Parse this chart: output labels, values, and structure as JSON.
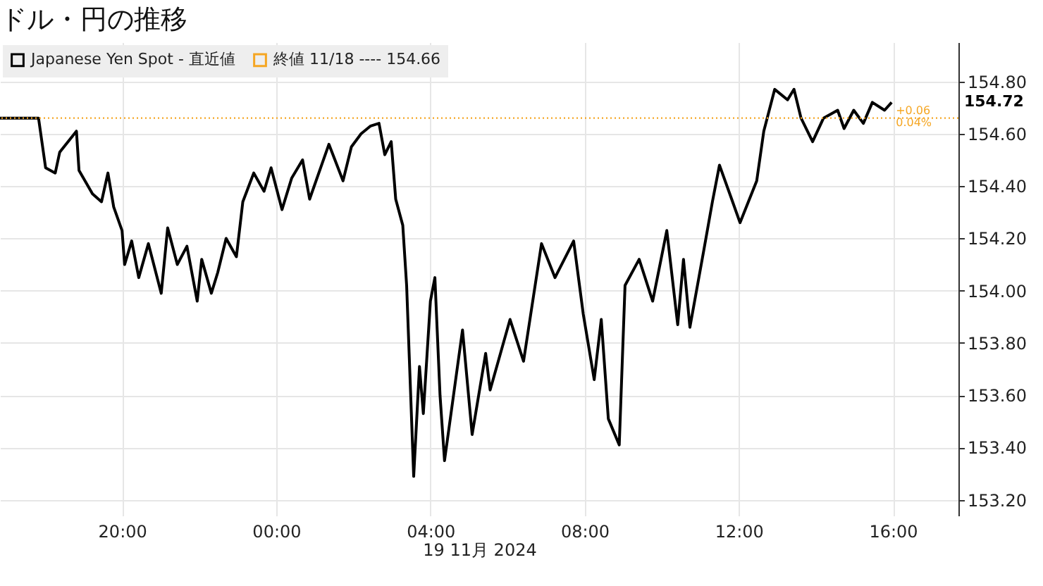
{
  "chart_data": {
    "type": "line",
    "title": "ドル・円の推移",
    "xlabel": "19 11月 2024",
    "x": [
      "2024-11-18T16:50",
      "2024-11-18T17:50",
      "2024-11-18T18:01",
      "2024-11-18T18:16",
      "2024-11-18T18:23",
      "2024-11-18T18:49",
      "2024-11-18T18:53",
      "2024-11-18T19:14",
      "2024-11-18T19:28",
      "2024-11-18T19:38",
      "2024-11-18T19:47",
      "2024-11-18T20:00",
      "2024-11-18T20:04",
      "2024-11-18T20:15",
      "2024-11-18T20:26",
      "2024-11-18T20:41",
      "2024-11-18T21:01",
      "2024-11-18T21:11",
      "2024-11-18T21:26",
      "2024-11-18T21:41",
      "2024-11-18T21:57",
      "2024-11-18T22:04",
      "2024-11-18T22:19",
      "2024-11-18T22:29",
      "2024-11-18T22:42",
      "2024-11-18T22:58",
      "2024-11-18T23:08",
      "2024-11-18T23:25",
      "2024-11-18T23:41",
      "2024-11-18T23:52",
      "2024-11-19T00:09",
      "2024-11-19T00:24",
      "2024-11-19T00:41",
      "2024-11-19T00:52",
      "2024-11-19T01:22",
      "2024-11-19T01:44",
      "2024-11-19T01:57",
      "2024-11-19T02:12",
      "2024-11-19T02:27",
      "2024-11-19T02:40",
      "2024-11-19T02:49",
      "2024-11-19T02:59",
      "2024-11-19T03:06",
      "2024-11-19T03:17",
      "2024-11-19T03:23",
      "2024-11-19T03:34",
      "2024-11-19T03:43",
      "2024-11-19T03:49",
      "2024-11-19T04:00",
      "2024-11-19T04:07",
      "2024-11-19T04:15",
      "2024-11-19T04:22",
      "2024-11-19T04:50",
      "2024-11-19T05:05",
      "2024-11-19T05:26",
      "2024-11-19T05:33",
      "2024-11-19T06:04",
      "2024-11-19T06:25",
      "2024-11-19T06:53",
      "2024-11-19T07:14",
      "2024-11-19T07:43",
      "2024-11-19T07:58",
      "2024-11-19T08:15",
      "2024-11-19T08:26",
      "2024-11-19T08:37",
      "2024-11-19T08:54",
      "2024-11-19T09:03",
      "2024-11-19T09:25",
      "2024-11-19T09:46",
      "2024-11-19T10:08",
      "2024-11-19T10:25",
      "2024-11-19T10:34",
      "2024-11-19T10:44",
      "2024-11-19T11:06",
      "2024-11-19T11:19",
      "2024-11-19T11:30",
      "2024-11-19T11:49",
      "2024-11-19T12:02",
      "2024-11-19T12:28",
      "2024-11-19T12:39",
      "2024-11-19T12:56",
      "2024-11-19T13:16",
      "2024-11-19T13:26",
      "2024-11-19T13:37",
      "2024-11-19T13:55",
      "2024-11-19T14:12",
      "2024-11-19T14:34",
      "2024-11-19T14:44",
      "2024-11-19T14:59",
      "2024-11-19T15:14",
      "2024-11-19T15:28",
      "2024-11-19T15:47",
      "2024-11-19T15:58"
    ],
    "series": [
      {
        "name": "Japanese Yen Spot - 直近値",
        "color": "#000000",
        "values": [
          154.66,
          154.66,
          154.47,
          154.45,
          154.53,
          154.61,
          154.46,
          154.37,
          154.34,
          154.45,
          154.32,
          154.23,
          154.1,
          154.19,
          154.05,
          154.18,
          153.99,
          154.24,
          154.1,
          154.17,
          153.96,
          154.12,
          153.99,
          154.07,
          154.2,
          154.13,
          154.34,
          154.45,
          154.38,
          154.47,
          154.31,
          154.43,
          154.5,
          154.35,
          154.56,
          154.42,
          154.55,
          154.6,
          154.63,
          154.64,
          154.52,
          154.57,
          154.35,
          154.25,
          154.02,
          153.29,
          153.71,
          153.53,
          153.96,
          154.05,
          153.6,
          153.35,
          153.85,
          153.45,
          153.76,
          153.62,
          153.89,
          153.73,
          154.18,
          154.05,
          154.19,
          153.91,
          153.66,
          153.89,
          153.51,
          153.41,
          154.02,
          154.12,
          153.96,
          154.23,
          153.87,
          154.12,
          153.86,
          154.16,
          154.34,
          154.48,
          154.35,
          154.26,
          154.42,
          154.61,
          154.77,
          154.73,
          154.77,
          154.66,
          154.57,
          154.66,
          154.69,
          154.62,
          154.69,
          154.64,
          154.72,
          154.69,
          154.72
        ]
      }
    ],
    "xlim": [
      "2024-11-18T16:50",
      "2024-11-19T17:42"
    ],
    "xticks": [
      {
        "value": "2024-11-18T20:00",
        "label": "20:00"
      },
      {
        "value": "2024-11-19T00:00",
        "label": "00:00"
      },
      {
        "value": "2024-11-19T04:00",
        "label": "04:00"
      },
      {
        "value": "2024-11-19T08:00",
        "label": "08:00"
      },
      {
        "value": "2024-11-19T12:00",
        "label": "12:00"
      },
      {
        "value": "2024-11-19T16:00",
        "label": "16:00"
      }
    ],
    "ylim": [
      153.14,
      154.95
    ],
    "yticks": [
      {
        "value": 153.2,
        "label": "153.20"
      },
      {
        "value": 153.4,
        "label": "153.40"
      },
      {
        "value": 153.6,
        "label": "153.60"
      },
      {
        "value": 153.8,
        "label": "153.80"
      },
      {
        "value": 154.0,
        "label": "154.00"
      },
      {
        "value": 154.2,
        "label": "154.20"
      },
      {
        "value": 154.4,
        "label": "154.40"
      },
      {
        "value": 154.6,
        "label": "154.60"
      },
      {
        "value": 154.8,
        "label": "154.80"
      }
    ],
    "ref_lines": [
      {
        "axis": "y",
        "value": 154.66,
        "label": "終値 11/18 ---- 154.66",
        "color": "#f5a623",
        "line_style": "dotted"
      }
    ],
    "annotations": [
      "154.72",
      {
        "text": "+0.06",
        "x": "2024-11-19T15:58",
        "y": 154.685
      },
      {
        "text": "0.04%",
        "x": "2024-11-19T15:58",
        "y": 154.64
      }
    ],
    "grid": true,
    "legend": "top left"
  }
}
